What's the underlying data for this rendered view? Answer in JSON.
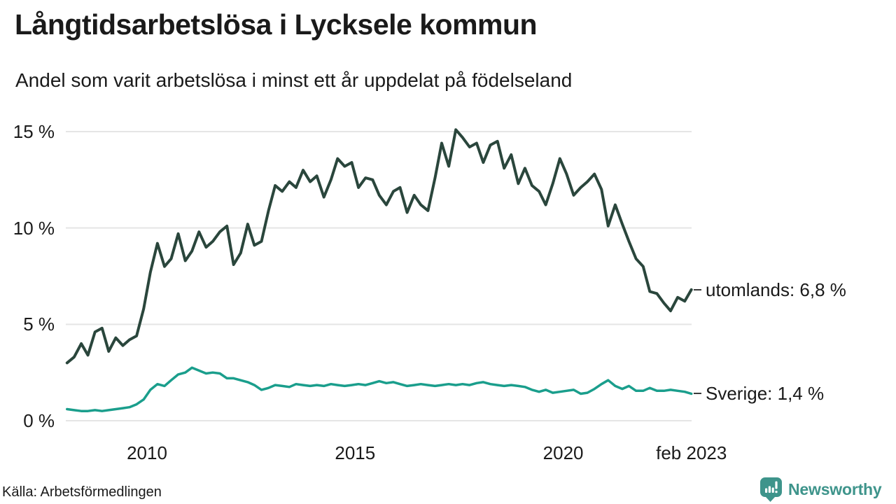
{
  "header": {
    "title": "Långtidsarbetslösa i Lycksele kommun",
    "subtitle": "Andel som varit arbetslösa i minst ett år uppdelat på födelseland"
  },
  "footer": {
    "source": "Källa: Arbetsförmedlingen",
    "brand": "Newsworthy"
  },
  "colors": {
    "utomlands_line": "#2a463c",
    "sverige_line": "#1a9e8c",
    "grid": "#e5e5e5",
    "text": "#1a1a1a",
    "brand": "#3e948b",
    "background": "#ffffff"
  },
  "chart_data": {
    "type": "line",
    "title": "Långtidsarbetslösa i Lycksele kommun",
    "subtitle": "Andel som varit arbetslösa i minst ett år uppdelat på födelseland",
    "unit": "%",
    "grid": "horizontal-only",
    "xlim": [
      2008.08,
      2023.08
    ],
    "ylim": [
      0,
      15
    ],
    "y_ticks": [
      {
        "label": "15 %",
        "value": 15
      },
      {
        "label": "10 %",
        "value": 10
      },
      {
        "label": "5 %",
        "value": 5
      },
      {
        "label": "0 %",
        "value": 0
      }
    ],
    "x_ticks": [
      {
        "label": "2010",
        "value": 2010
      },
      {
        "label": "2015",
        "value": 2015
      },
      {
        "label": "2020",
        "value": 2020
      },
      {
        "label": "feb 2023",
        "value": 2023.08
      }
    ],
    "x": [
      2008.08,
      2008.25,
      2008.42,
      2008.58,
      2008.75,
      2008.92,
      2009.08,
      2009.25,
      2009.42,
      2009.58,
      2009.75,
      2009.92,
      2010.08,
      2010.25,
      2010.42,
      2010.58,
      2010.75,
      2010.92,
      2011.08,
      2011.25,
      2011.42,
      2011.58,
      2011.75,
      2011.92,
      2012.08,
      2012.25,
      2012.42,
      2012.58,
      2012.75,
      2012.92,
      2013.08,
      2013.25,
      2013.42,
      2013.58,
      2013.75,
      2013.92,
      2014.08,
      2014.25,
      2014.42,
      2014.58,
      2014.75,
      2014.92,
      2015.08,
      2015.25,
      2015.42,
      2015.58,
      2015.75,
      2015.92,
      2016.08,
      2016.25,
      2016.42,
      2016.58,
      2016.75,
      2016.92,
      2017.08,
      2017.25,
      2017.42,
      2017.58,
      2017.75,
      2017.92,
      2018.08,
      2018.25,
      2018.42,
      2018.58,
      2018.75,
      2018.92,
      2019.08,
      2019.25,
      2019.42,
      2019.58,
      2019.75,
      2019.92,
      2020.08,
      2020.25,
      2020.42,
      2020.58,
      2020.75,
      2020.92,
      2021.08,
      2021.25,
      2021.42,
      2021.58,
      2021.75,
      2021.92,
      2022.08,
      2022.25,
      2022.42,
      2022.58,
      2022.75,
      2022.92,
      2023.08
    ],
    "series": [
      {
        "name": "utomlands",
        "label": "utomlands: 6,8 %",
        "last_value_label": "6,8 %",
        "color": "#2a463c",
        "values": [
          3.0,
          3.3,
          4.0,
          3.4,
          4.6,
          4.8,
          3.6,
          4.3,
          3.9,
          4.2,
          4.4,
          5.8,
          7.7,
          9.2,
          8.0,
          8.4,
          9.7,
          8.3,
          8.8,
          9.8,
          9.0,
          9.3,
          9.8,
          10.1,
          8.1,
          8.7,
          10.2,
          9.1,
          9.3,
          10.9,
          12.2,
          11.9,
          12.4,
          12.1,
          13.0,
          12.4,
          12.7,
          11.6,
          12.5,
          13.6,
          13.2,
          13.4,
          12.1,
          12.6,
          12.5,
          11.7,
          11.2,
          11.9,
          12.1,
          10.8,
          11.7,
          11.2,
          10.9,
          12.6,
          14.4,
          13.2,
          15.1,
          14.7,
          14.2,
          14.4,
          13.4,
          14.3,
          14.5,
          13.1,
          13.8,
          12.3,
          13.1,
          12.2,
          11.9,
          11.2,
          12.3,
          13.6,
          12.8,
          11.7,
          12.1,
          12.4,
          12.8,
          12.0,
          10.1,
          11.2,
          10.2,
          9.3,
          8.4,
          8.0,
          6.7,
          6.6,
          6.1,
          5.7,
          6.4,
          6.2,
          6.8
        ]
      },
      {
        "name": "Sverige",
        "label": "Sverige: 1,4 %",
        "last_value_label": "1,4 %",
        "color": "#1a9e8c",
        "values": [
          0.6,
          0.55,
          0.5,
          0.5,
          0.55,
          0.5,
          0.55,
          0.6,
          0.65,
          0.7,
          0.85,
          1.1,
          1.6,
          1.9,
          1.8,
          2.1,
          2.4,
          2.5,
          2.75,
          2.6,
          2.45,
          2.5,
          2.45,
          2.2,
          2.2,
          2.1,
          2.0,
          1.85,
          1.6,
          1.7,
          1.85,
          1.8,
          1.75,
          1.9,
          1.85,
          1.8,
          1.85,
          1.8,
          1.9,
          1.85,
          1.8,
          1.85,
          1.9,
          1.85,
          1.95,
          2.05,
          1.95,
          2.0,
          1.9,
          1.8,
          1.85,
          1.9,
          1.85,
          1.8,
          1.85,
          1.9,
          1.85,
          1.9,
          1.85,
          1.95,
          2.0,
          1.9,
          1.85,
          1.8,
          1.85,
          1.8,
          1.75,
          1.6,
          1.5,
          1.6,
          1.45,
          1.5,
          1.55,
          1.6,
          1.4,
          1.45,
          1.65,
          1.9,
          2.1,
          1.8,
          1.65,
          1.8,
          1.55,
          1.55,
          1.7,
          1.55,
          1.55,
          1.6,
          1.55,
          1.5,
          1.4
        ]
      }
    ],
    "legend_position": "right-of-line-end"
  }
}
